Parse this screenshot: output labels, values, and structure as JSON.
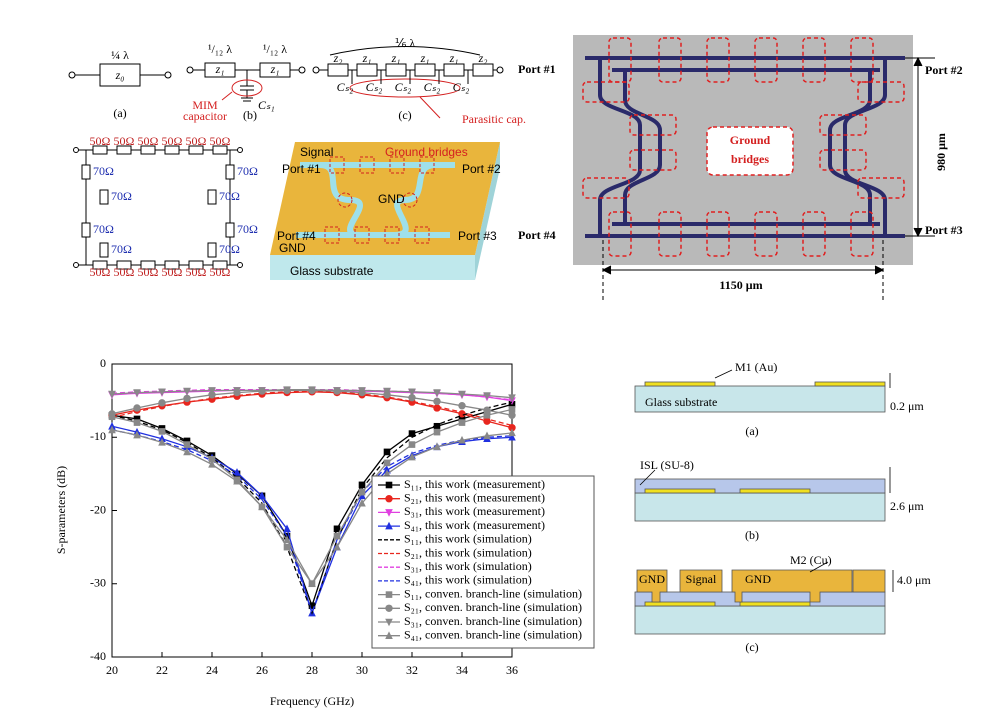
{
  "chart_data": {
    "type": "line",
    "xlabel": "Frequency (GHz)",
    "ylabel": "S-parameters (dB)",
    "x": [
      20,
      21,
      22,
      23,
      24,
      25,
      26,
      27,
      28,
      29,
      30,
      31,
      32,
      33,
      34,
      35,
      36
    ],
    "xlim": [
      20,
      36
    ],
    "xticks": [
      20,
      22,
      24,
      26,
      28,
      30,
      32,
      34,
      36
    ],
    "ylim": [
      -40,
      0
    ],
    "yticks": [
      0,
      -10,
      -20,
      -30,
      -40
    ],
    "series": [
      {
        "name": "S₁₁, this work (measurement)",
        "color": "#000000",
        "marker": "square",
        "line_style": "solid",
        "values": [
          -7,
          -7.5,
          -8.8,
          -10.5,
          -12.5,
          -15,
          -18,
          -23.5,
          -33,
          -22.5,
          -16.5,
          -12,
          -9.5,
          -8.5,
          -7.5,
          -6.5,
          -5.5
        ]
      },
      {
        "name": "S₂₁, this work (measurement)",
        "color": "#e8261e",
        "marker": "circle",
        "line_style": "solid",
        "values": [
          -7,
          -6.3,
          -5.7,
          -5.2,
          -4.8,
          -4.4,
          -4.1,
          -3.9,
          -3.8,
          -3.9,
          -4.2,
          -4.6,
          -5.2,
          -6,
          -6.8,
          -7.8,
          -8.7
        ]
      },
      {
        "name": "S₃₁, this work (measurement)",
        "color": "#e040e0",
        "marker": "triangle-down",
        "line_style": "solid",
        "values": [
          -4.2,
          -4,
          -3.9,
          -3.8,
          -3.7,
          -3.6,
          -3.6,
          -3.6,
          -3.6,
          -3.6,
          -3.7,
          -3.8,
          -3.9,
          -4,
          -4.2,
          -4.5,
          -5
        ]
      },
      {
        "name": "S₄₁, this work (measurement)",
        "color": "#2030e0",
        "marker": "triangle-up",
        "line_style": "solid",
        "values": [
          -8.5,
          -9.3,
          -10.2,
          -11.3,
          -12.8,
          -14.8,
          -18,
          -22.5,
          -34,
          -25,
          -18,
          -14.5,
          -12.5,
          -11.3,
          -10.6,
          -10.2,
          -10
        ]
      },
      {
        "name": "S₁₁, this work (simulation)",
        "color": "#000000",
        "marker": "none",
        "line_style": "dashed",
        "values": [
          -7,
          -7.8,
          -9,
          -10.7,
          -12.8,
          -15.5,
          -19,
          -25,
          -34,
          -24,
          -17,
          -12.8,
          -10,
          -8.3,
          -7,
          -6,
          -5.2
        ]
      },
      {
        "name": "S₂₁, this work (simulation)",
        "color": "#e8261e",
        "marker": "none",
        "line_style": "dashed",
        "values": [
          -7.3,
          -6.5,
          -5.8,
          -5.2,
          -4.7,
          -4.3,
          -4,
          -3.8,
          -3.7,
          -3.8,
          -4.1,
          -4.5,
          -5.1,
          -5.8,
          -6.6,
          -7.5,
          -8.4
        ]
      },
      {
        "name": "S₃₁, this work (simulation)",
        "color": "#e040e0",
        "marker": "none",
        "line_style": "dashed",
        "values": [
          -4,
          -3.8,
          -3.7,
          -3.6,
          -3.5,
          -3.5,
          -3.5,
          -3.5,
          -3.5,
          -3.5,
          -3.6,
          -3.7,
          -3.8,
          -4,
          -4.2,
          -4.5,
          -4.9
        ]
      },
      {
        "name": "S₄₁, this work (simulation)",
        "color": "#2030e0",
        "marker": "none",
        "line_style": "dashed",
        "values": [
          -9,
          -9.7,
          -10.6,
          -11.7,
          -13.2,
          -15.2,
          -18.5,
          -23.5,
          -34,
          -24,
          -17.5,
          -14,
          -12.2,
          -11.1,
          -10.4,
          -10,
          -9.8
        ]
      },
      {
        "name": "S₁₁, conven. branch-line (simulation)",
        "color": "#888888",
        "marker": "square",
        "line_style": "solid",
        "values": [
          -7.2,
          -8,
          -9.2,
          -11,
          -13,
          -15.8,
          -19.5,
          -25,
          -30,
          -23.5,
          -17.5,
          -13.5,
          -11,
          -9.3,
          -8,
          -7,
          -6.2
        ]
      },
      {
        "name": "S₂₁, conven. branch-line (simulation)",
        "color": "#888888",
        "marker": "circle",
        "line_style": "solid",
        "values": [
          -6.8,
          -6,
          -5.3,
          -4.7,
          -4.2,
          -3.9,
          -3.7,
          -3.6,
          -3.6,
          -3.7,
          -3.9,
          -4.2,
          -4.6,
          -5.1,
          -5.7,
          -6.3,
          -7
        ]
      },
      {
        "name": "S₃₁, conven. branch-line (simulation)",
        "color": "#888888",
        "marker": "triangle-down",
        "line_style": "solid",
        "values": [
          -4.1,
          -3.9,
          -3.8,
          -3.7,
          -3.6,
          -3.6,
          -3.6,
          -3.5,
          -3.5,
          -3.6,
          -3.6,
          -3.7,
          -3.8,
          -3.9,
          -4.1,
          -4.3,
          -4.6
        ]
      },
      {
        "name": "S₄₁, conven. branch-line (simulation)",
        "color": "#888888",
        "marker": "triangle-up",
        "line_style": "solid",
        "values": [
          -9,
          -9.7,
          -10.7,
          -12,
          -13.7,
          -16,
          -19.5,
          -24,
          -30,
          -25,
          -19,
          -15,
          -12.7,
          -11.3,
          -10.4,
          -9.8,
          -9.4
        ]
      }
    ]
  },
  "circuits": {
    "a": {
      "length": "¼ λ",
      "impedance": "z₀",
      "caption": "(a)"
    },
    "b": {
      "length_left": "¹/₁₂ λ",
      "length_right": "¹/₁₂ λ",
      "impedance_left": "z₁",
      "impedance_right": "z₁",
      "capacitor": "Cₛ₁",
      "note": [
        "MIM",
        "capacitor"
      ],
      "caption": "(b)"
    },
    "c": {
      "length": "⅙ λ",
      "impedances": [
        "z₂",
        "z₁",
        "z₁",
        "z₁",
        "z₁",
        "z₂"
      ],
      "capacitors": [
        "Cₛ₂",
        "Cₛ₂",
        "Cₛ₂",
        "Cₛ₂",
        "Cₛ₂"
      ],
      "note": "Parasitic cap.",
      "caption": "(c)"
    }
  },
  "ring": {
    "top": [
      "50Ω",
      "50Ω",
      "50Ω",
      "50Ω",
      "50Ω",
      "50Ω"
    ],
    "bottom": [
      "50Ω",
      "50Ω",
      "50Ω",
      "50Ω",
      "50Ω",
      "50Ω"
    ],
    "sides": [
      "70Ω",
      "70Ω",
      "70Ω",
      "70Ω",
      "70Ω",
      "70Ω",
      "70Ω",
      "70Ω"
    ]
  },
  "layout": {
    "signal": "Signal",
    "bridges": "Ground bridges",
    "port1": "Port #1",
    "port2": "Port #2",
    "port3": "Port #3",
    "port4": "Port #4",
    "gnd_center": "GND",
    "gnd_corner": "GND",
    "substrate": "Glass substrate"
  },
  "micrograph": {
    "port1": "Port #1",
    "port2": "Port #2",
    "port3": "Port #3",
    "port4": "Port #4",
    "bridges": [
      "Ground",
      "bridges"
    ],
    "height": "980 μm",
    "width": "1150 μm"
  },
  "cross_sections": {
    "a": {
      "layer": "M1 (Au)",
      "substrate": "Glass substrate",
      "thickness": "0.2 μm",
      "caption": "(a)"
    },
    "b": {
      "layer": "ISL (SU-8)",
      "thickness": "2.6 μm",
      "caption": "(b)"
    },
    "c": {
      "gnd_left": "GND",
      "signal": "Signal",
      "gnd_right": "GND",
      "layer": "M2 (Cu)",
      "thickness": "4.0 μm",
      "caption": "(c)"
    }
  }
}
